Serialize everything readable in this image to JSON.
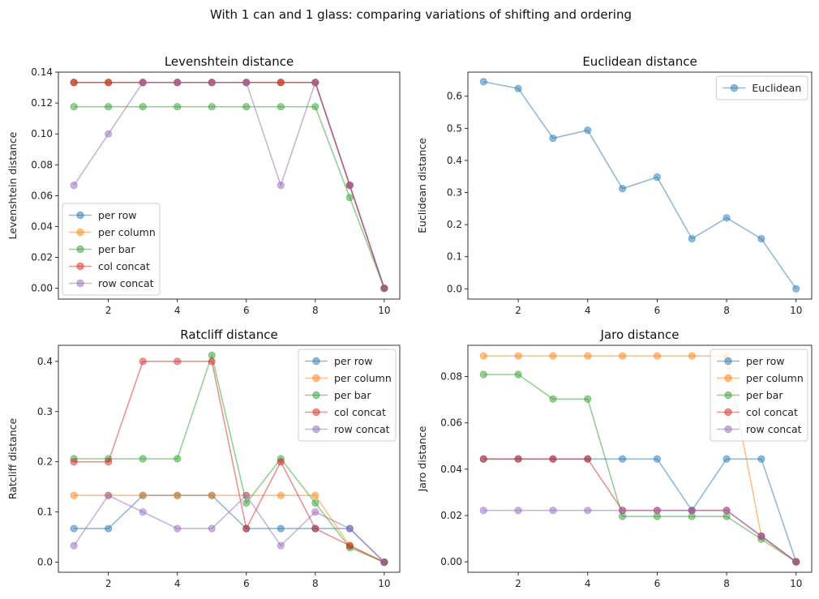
{
  "figure": {
    "suptitle": "With 1 can and 1 glass: comparing variations of shifting and ordering"
  },
  "chart_data": [
    {
      "type": "line",
      "title": "Levenshtein distance",
      "xlabel": "",
      "ylabel": "Levenshtein distance",
      "xlim": [
        0.55,
        10.45
      ],
      "ylim": [
        -0.007,
        0.14
      ],
      "xticks": [
        2,
        4,
        6,
        8,
        10
      ],
      "yticks": [
        0.0,
        0.02,
        0.04,
        0.06,
        0.08,
        0.1,
        0.12,
        0.14
      ],
      "ytick_labels": [
        "0.00",
        "0.02",
        "0.04",
        "0.06",
        "0.08",
        "0.10",
        "0.12",
        "0.14"
      ],
      "legend": "lower-left",
      "x": [
        1,
        2,
        3,
        4,
        5,
        6,
        7,
        8,
        9,
        10
      ],
      "series": [
        {
          "name": "per row",
          "color": "#1f77b4",
          "values": [
            0.1333,
            0.1333,
            0.1333,
            0.1333,
            0.1333,
            0.1333,
            0.1333,
            0.1333,
            0.0667,
            0.0
          ]
        },
        {
          "name": "per column",
          "color": "#ff7f0e",
          "values": [
            0.1333,
            0.1333,
            0.1333,
            0.1333,
            0.1333,
            0.1333,
            0.1333,
            0.1333,
            0.0667,
            0.0
          ]
        },
        {
          "name": "per bar",
          "color": "#2ca02c",
          "values": [
            0.1176,
            0.1176,
            0.1176,
            0.1176,
            0.1176,
            0.1176,
            0.1176,
            0.1176,
            0.0588,
            0.0
          ]
        },
        {
          "name": "col concat",
          "color": "#d62728",
          "values": [
            0.1333,
            0.1333,
            0.1333,
            0.1333,
            0.1333,
            0.1333,
            0.1333,
            0.1333,
            0.0667,
            0.0
          ]
        },
        {
          "name": "row concat",
          "color": "#9467bd",
          "values": [
            0.0667,
            0.1,
            0.1333,
            0.1333,
            0.1333,
            0.1333,
            0.0667,
            0.1333,
            0.0667,
            0.0
          ]
        }
      ]
    },
    {
      "type": "line",
      "title": "Euclidean distance",
      "xlabel": "",
      "ylabel": "Euclidean distance",
      "xlim": [
        0.55,
        10.45
      ],
      "ylim": [
        -0.032,
        0.675
      ],
      "xticks": [
        2,
        4,
        6,
        8,
        10
      ],
      "yticks": [
        0.0,
        0.1,
        0.2,
        0.3,
        0.4,
        0.5,
        0.6
      ],
      "ytick_labels": [
        "0.0",
        "0.1",
        "0.2",
        "0.3",
        "0.4",
        "0.5",
        "0.6"
      ],
      "legend": "top-right",
      "x": [
        1,
        2,
        3,
        4,
        5,
        6,
        7,
        8,
        9,
        10
      ],
      "series": [
        {
          "name": "Euclidean",
          "color": "#1f77b4",
          "values": [
            0.645,
            0.624,
            0.469,
            0.494,
            0.312,
            0.348,
            0.156,
            0.221,
            0.156,
            0.0
          ]
        }
      ]
    },
    {
      "type": "line",
      "title": "Ratcliff distance",
      "xlabel": "",
      "ylabel": "Ratcliff distance",
      "xlim": [
        0.55,
        10.45
      ],
      "ylim": [
        -0.02,
        0.432
      ],
      "xticks": [
        2,
        4,
        6,
        8,
        10
      ],
      "yticks": [
        0.0,
        0.1,
        0.2,
        0.3,
        0.4
      ],
      "ytick_labels": [
        "0.0",
        "0.1",
        "0.2",
        "0.3",
        "0.4"
      ],
      "legend": "top-right",
      "x": [
        1,
        2,
        3,
        4,
        5,
        6,
        7,
        8,
        9,
        10
      ],
      "series": [
        {
          "name": "per row",
          "color": "#1f77b4",
          "values": [
            0.067,
            0.067,
            0.133,
            0.133,
            0.133,
            0.067,
            0.067,
            0.067,
            0.067,
            0.0
          ]
        },
        {
          "name": "per column",
          "color": "#ff7f0e",
          "values": [
            0.133,
            0.133,
            0.133,
            0.133,
            0.133,
            0.133,
            0.133,
            0.133,
            0.033,
            0.0
          ]
        },
        {
          "name": "per bar",
          "color": "#2ca02c",
          "values": [
            0.206,
            0.206,
            0.206,
            0.206,
            0.412,
            0.118,
            0.206,
            0.118,
            0.029,
            0.0
          ]
        },
        {
          "name": "col concat",
          "color": "#d62728",
          "values": [
            0.2,
            0.2,
            0.4,
            0.4,
            0.4,
            0.067,
            0.2,
            0.067,
            0.033,
            0.0
          ]
        },
        {
          "name": "row concat",
          "color": "#9467bd",
          "values": [
            0.033,
            0.133,
            0.1,
            0.067,
            0.067,
            0.133,
            0.033,
            0.1,
            0.067,
            0.0
          ]
        }
      ]
    },
    {
      "type": "line",
      "title": "Jaro distance",
      "xlabel": "",
      "ylabel": "Jaro distance",
      "xlim": [
        0.55,
        10.45
      ],
      "ylim": [
        -0.0045,
        0.0935
      ],
      "xticks": [
        2,
        4,
        6,
        8,
        10
      ],
      "yticks": [
        0.0,
        0.02,
        0.04,
        0.06,
        0.08
      ],
      "ytick_labels": [
        "0.00",
        "0.02",
        "0.04",
        "0.06",
        "0.08"
      ],
      "legend": "top-right",
      "x": [
        1,
        2,
        3,
        4,
        5,
        6,
        7,
        8,
        9,
        10
      ],
      "series": [
        {
          "name": "per row",
          "color": "#1f77b4",
          "values": [
            0.0444,
            0.0444,
            0.0444,
            0.0444,
            0.0444,
            0.0444,
            0.0222,
            0.0444,
            0.0444,
            0.0
          ]
        },
        {
          "name": "per column",
          "color": "#ff7f0e",
          "values": [
            0.0889,
            0.0889,
            0.0889,
            0.0889,
            0.0889,
            0.0889,
            0.0889,
            0.0889,
            0.0111,
            0.0
          ]
        },
        {
          "name": "per bar",
          "color": "#2ca02c",
          "values": [
            0.0809,
            0.0809,
            0.0703,
            0.0703,
            0.0196,
            0.0196,
            0.0196,
            0.0196,
            0.0098,
            0.0
          ]
        },
        {
          "name": "col concat",
          "color": "#d62728",
          "values": [
            0.0444,
            0.0444,
            0.0444,
            0.0444,
            0.0222,
            0.0222,
            0.0222,
            0.0222,
            0.0111,
            0.0
          ]
        },
        {
          "name": "row concat",
          "color": "#9467bd",
          "values": [
            0.0222,
            0.0222,
            0.0222,
            0.0222,
            0.0222,
            0.0222,
            0.0222,
            0.0222,
            0.0111,
            0.0
          ]
        }
      ]
    }
  ]
}
